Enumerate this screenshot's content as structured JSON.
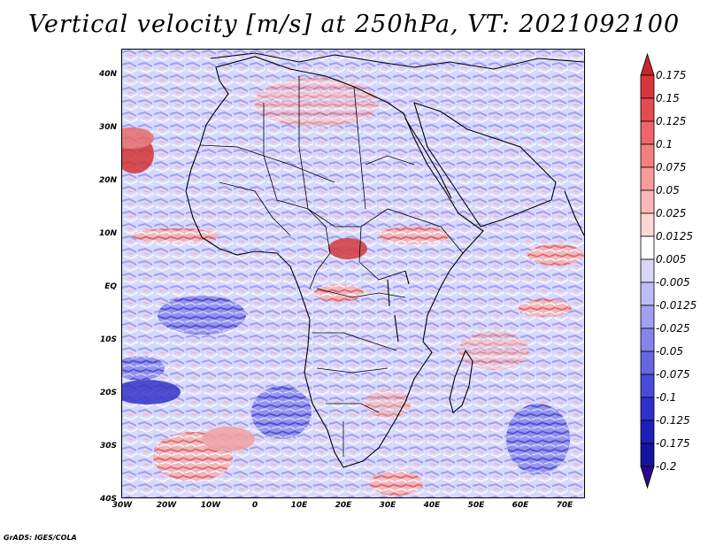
{
  "title": "Vertical velocity [m/s] at 250hPa, VT: 2021092100",
  "footer": "GrADS: IGES/COLA",
  "map": {
    "lat_range": [
      -40,
      45
    ],
    "lon_range": [
      -30,
      75
    ],
    "lat_labels": [
      "40N",
      "30N",
      "20N",
      "10N",
      "EQ",
      "10S",
      "20S",
      "30S",
      "40S"
    ],
    "lon_labels": [
      "30W",
      "20W",
      "10W",
      "0",
      "10E",
      "20E",
      "30E",
      "40E",
      "50E",
      "60E",
      "70E"
    ]
  },
  "colorbar": {
    "labels": [
      "0.175",
      "0.15",
      "0.125",
      "0.1",
      "0.075",
      "0.05",
      "0.025",
      "0.0125",
      "0.005",
      "-0.005",
      "-0.0125",
      "-0.025",
      "-0.05",
      "-0.075",
      "-0.1",
      "-0.125",
      "-0.175",
      "-0.2"
    ],
    "colors": [
      "#c8242c",
      "#d9363c",
      "#e44c50",
      "#ee6468",
      "#f47f80",
      "#f89b9b",
      "#fbb8b6",
      "#fdd7d4",
      "#ffffff",
      "#d6d6fb",
      "#bcbcf6",
      "#a0a0f0",
      "#8484ea",
      "#6666e2",
      "#4a4ad8",
      "#3030cc",
      "#1e1eb8",
      "#14149c",
      "#2a0a8c"
    ]
  },
  "colors": {
    "positive": "#d9363c",
    "negative": "#4a4ad8",
    "border": "#000000"
  }
}
